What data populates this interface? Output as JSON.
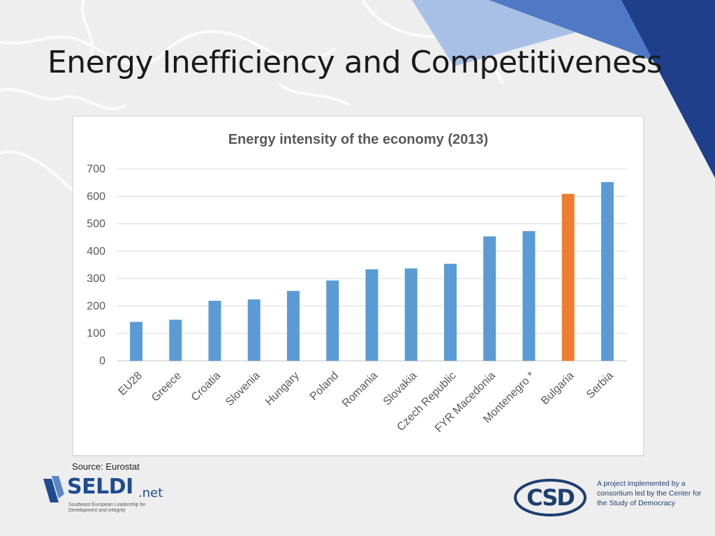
{
  "slide": {
    "title": "Energy Inefficiency and Competitiveness",
    "source": "Source: Eurostat"
  },
  "chart_data": {
    "type": "bar",
    "title": "Energy intensity of the economy (2013)",
    "xlabel": "",
    "ylabel": "",
    "ylim": [
      0,
      700
    ],
    "yticks": [
      0,
      100,
      200,
      300,
      400,
      500,
      600,
      700
    ],
    "grid": true,
    "legend": "none",
    "categories": [
      "EU28",
      "Greece",
      "Croatia",
      "Slovenia",
      "Hungary",
      "Poland",
      "Romania",
      "Slovakia",
      "Czech Republic",
      "FYR Macedonia",
      "Montenegro *",
      "Bulgaria",
      "Serbia"
    ],
    "values": [
      142,
      150,
      219,
      224,
      255,
      293,
      334,
      337,
      354,
      454,
      473,
      609,
      652
    ],
    "bar_color": "#5b9bd5",
    "highlight_index": 11,
    "highlight_color": "#ed7d31"
  },
  "logos": {
    "seldi_name": "SELDI",
    "seldi_domain": ".net",
    "seldi_tagline": "Southeast European Leadership for Development and Integrity",
    "csd_text": "A project implemented by a consortium led by the Center for the Study of Democracy"
  },
  "colors": {
    "accent_blue": "#1e4c8f",
    "triangle_light": "#a9c0e6",
    "triangle_mid": "#4f79c4",
    "triangle_dark": "#1f3f8a"
  }
}
